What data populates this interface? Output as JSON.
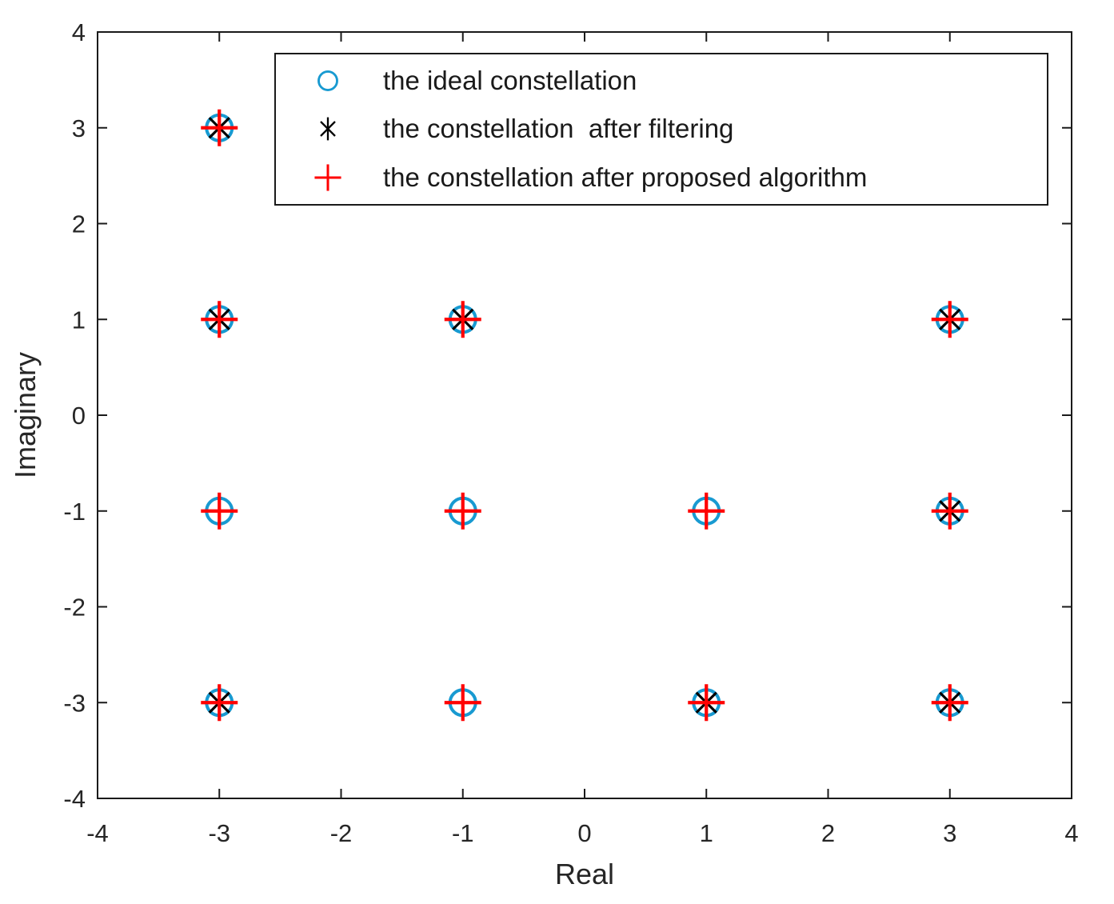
{
  "figure": {
    "background": "#ffffff",
    "axis_color": "#262626",
    "box_color": "#1a1a1a"
  },
  "chart_data": {
    "type": "scatter",
    "title": "",
    "xlabel": "Real",
    "ylabel": "Imaginary",
    "xlim": [
      -4,
      4
    ],
    "ylim": [
      -4,
      4
    ],
    "x_ticks": [
      -4,
      -3,
      -2,
      -1,
      0,
      1,
      2,
      3,
      4
    ],
    "y_ticks": [
      -4,
      -3,
      -2,
      -1,
      0,
      1,
      2,
      3,
      4
    ],
    "grid": false,
    "legend": {
      "position": "inside-top",
      "border_color": "#1a1a1a",
      "background": "#ffffff"
    },
    "series": [
      {
        "name": "the ideal constellation",
        "marker": "circle",
        "color": "#189ad1",
        "points": [
          [
            -3,
            3
          ],
          [
            -3,
            1
          ],
          [
            -1,
            1
          ],
          [
            3,
            1
          ],
          [
            -3,
            -1
          ],
          [
            -1,
            -1
          ],
          [
            1,
            -1
          ],
          [
            3,
            -1
          ],
          [
            -3,
            -3
          ],
          [
            -1,
            -3
          ],
          [
            1,
            -3
          ],
          [
            3,
            -3
          ]
        ]
      },
      {
        "name": "the constellation  after filtering",
        "marker": "asterisk",
        "color": "#000000",
        "points": [
          [
            -3,
            3
          ],
          [
            -3,
            1
          ],
          [
            -1,
            1
          ],
          [
            3,
            1
          ],
          [
            3,
            -1
          ],
          [
            -3,
            -3
          ],
          [
            1,
            -3
          ],
          [
            3,
            -3
          ]
        ]
      },
      {
        "name": "the constellation after proposed algorithm",
        "marker": "plus",
        "color": "#ff0000",
        "points": [
          [
            -3,
            3
          ],
          [
            -3,
            1
          ],
          [
            -1,
            1
          ],
          [
            3,
            1
          ],
          [
            -3,
            -1
          ],
          [
            -1,
            -1
          ],
          [
            1,
            -1
          ],
          [
            3,
            -1
          ],
          [
            -3,
            -3
          ],
          [
            -1,
            -3
          ],
          [
            1,
            -3
          ],
          [
            3,
            -3
          ]
        ]
      }
    ]
  }
}
